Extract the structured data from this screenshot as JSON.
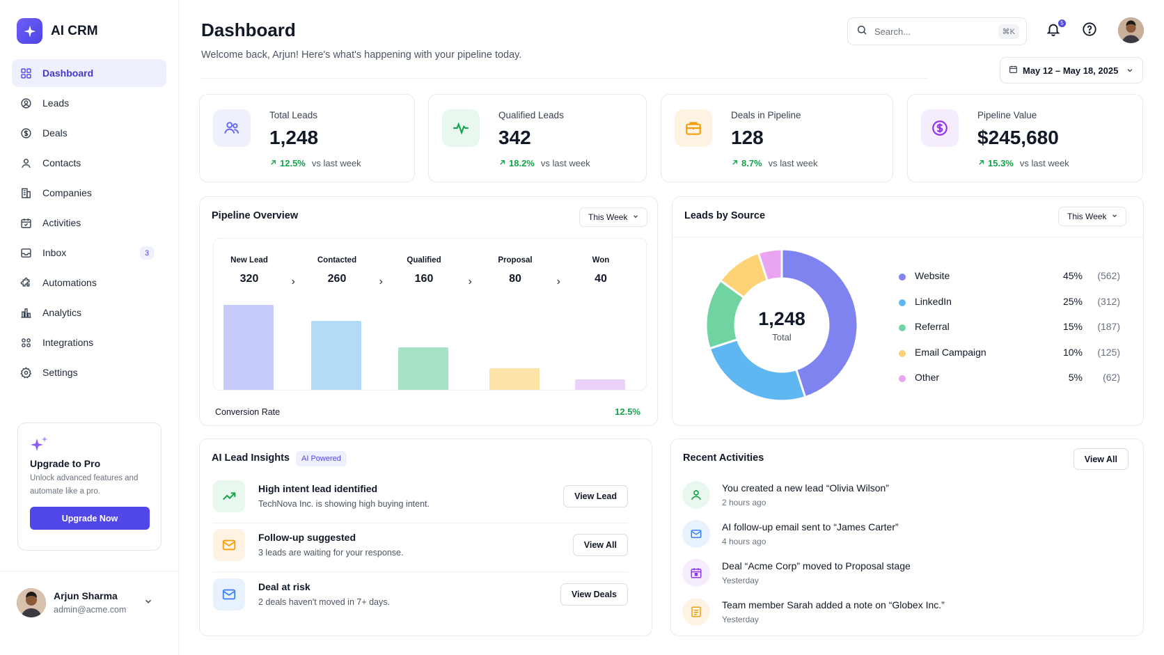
{
  "app": {
    "name": "AI CRM",
    "accent": "#5146e8"
  },
  "sidebar": {
    "items": [
      {
        "label": "Dashboard",
        "icon": "grid-icon",
        "active": true
      },
      {
        "label": "Leads",
        "icon": "user-circle-icon"
      },
      {
        "label": "Deals",
        "icon": "dollar-circle-icon"
      },
      {
        "label": "Contacts",
        "icon": "user-icon"
      },
      {
        "label": "Companies",
        "icon": "building-icon"
      },
      {
        "label": "Activities",
        "icon": "calendar-icon"
      },
      {
        "label": "Inbox",
        "icon": "inbox-icon",
        "badge": "3"
      },
      {
        "label": "Automations",
        "icon": "puzzle-icon"
      },
      {
        "label": "Analytics",
        "icon": "bar-chart-icon"
      },
      {
        "label": "Integrations",
        "icon": "apps-icon"
      },
      {
        "label": "Settings",
        "icon": "gear-icon"
      }
    ],
    "upgrade": {
      "title": "Upgrade to Pro",
      "description": "Unlock advanced features and automate like a pro.",
      "button": "Upgrade Now"
    },
    "user": {
      "name": "Arjun Sharma",
      "email": "admin@acme.com"
    }
  },
  "header": {
    "title": "Dashboard",
    "subtitle": "Welcome back, Arjun! Here's what's happening with your pipeline today.",
    "search_placeholder": "Search...",
    "search_shortcut": "⌘K",
    "notification_count": "5",
    "date_range": "May 12 – May 18, 2025"
  },
  "kpis": [
    {
      "label": "Total Leads",
      "value": "1,248",
      "change": "12.5%",
      "compare": "vs last week",
      "icon": "users-icon",
      "color": "#6366f1",
      "bg": "#eef0fe"
    },
    {
      "label": "Qualified Leads",
      "value": "342",
      "change": "18.2%",
      "compare": "vs last week",
      "icon": "activity-icon",
      "color": "#16a34a",
      "bg": "#e9f8ef"
    },
    {
      "label": "Deals in Pipeline",
      "value": "128",
      "change": "8.7%",
      "compare": "vs last week",
      "icon": "briefcase-icon",
      "color": "#f59e0b",
      "bg": "#fef3e2"
    },
    {
      "label": "Pipeline Value",
      "value": "$245,680",
      "change": "15.3%",
      "compare": "vs last week",
      "icon": "dollar-icon",
      "color": "#9333ea",
      "bg": "#f5ecfe"
    }
  ],
  "pipeline": {
    "title": "Pipeline Overview",
    "period": "This Week",
    "conversion_label": "Conversion Rate",
    "conversion_value": "12.5%"
  },
  "leads_by_source": {
    "title": "Leads by Source",
    "period": "This Week",
    "total": "1,248",
    "total_label": "Total"
  },
  "chart_data": [
    {
      "type": "bar",
      "categories": [
        "New Lead",
        "Contacted",
        "Qualified",
        "Proposal",
        "Won"
      ],
      "values": [
        320,
        260,
        160,
        80,
        40
      ],
      "colors": [
        "#c7cbf9",
        "#b3dbf7",
        "#a7e2c6",
        "#fde3a8",
        "#ead2fa"
      ],
      "ylim": [
        0,
        320
      ]
    },
    {
      "type": "pie",
      "labels": [
        "Website",
        "LinkedIn",
        "Referral",
        "Email Campaign",
        "Other"
      ],
      "percents": [
        "45%",
        "25%",
        "15%",
        "10%",
        "5%"
      ],
      "counts": [
        "(562)",
        "(312)",
        "(187)",
        "(125)",
        "(62)"
      ],
      "values": [
        45,
        25,
        15,
        10,
        5
      ],
      "colors": [
        "#7f83f0",
        "#5eb7f0",
        "#6fd4a2",
        "#fcd275",
        "#e9a5ef"
      ]
    }
  ],
  "ai_insights": {
    "title": "AI Lead Insights",
    "badge": "AI Powered",
    "items": [
      {
        "title": "High intent lead identified",
        "description": "TechNova Inc. is showing high buying intent.",
        "button": "View Lead",
        "icon": "trending-up-icon",
        "color": "#16a34a",
        "bg": "#e9f8ef"
      },
      {
        "title": "Follow-up suggested",
        "description": "3 leads are waiting for your response.",
        "button": "View All",
        "icon": "mail-icon",
        "color": "#f59e0b",
        "bg": "#fef3e2"
      },
      {
        "title": "Deal at risk",
        "description": "2 deals haven't moved in 7+ days.",
        "button": "View Deals",
        "icon": "mail-icon",
        "color": "#3b82f6",
        "bg": "#e8f2fe"
      }
    ]
  },
  "recent_activities": {
    "title": "Recent Activities",
    "view_all": "View All",
    "items": [
      {
        "text": "You created a new lead “Olivia Wilson”",
        "time": "2 hours ago",
        "icon": "user-icon",
        "color": "#16a34a",
        "bg": "#e9f8ef"
      },
      {
        "text": "AI follow-up email sent to “James Carter”",
        "time": "4 hours ago",
        "icon": "mail-icon",
        "color": "#3b82f6",
        "bg": "#e8f2fe"
      },
      {
        "text": "Deal “Acme Corp” moved to Proposal stage",
        "time": "Yesterday",
        "icon": "calendar-icon",
        "color": "#9333ea",
        "bg": "#f5ecfe"
      },
      {
        "text": "Team member Sarah added a note on “Globex Inc.”",
        "time": "Yesterday",
        "icon": "note-icon",
        "color": "#f59e0b",
        "bg": "#fef3e2"
      }
    ]
  }
}
